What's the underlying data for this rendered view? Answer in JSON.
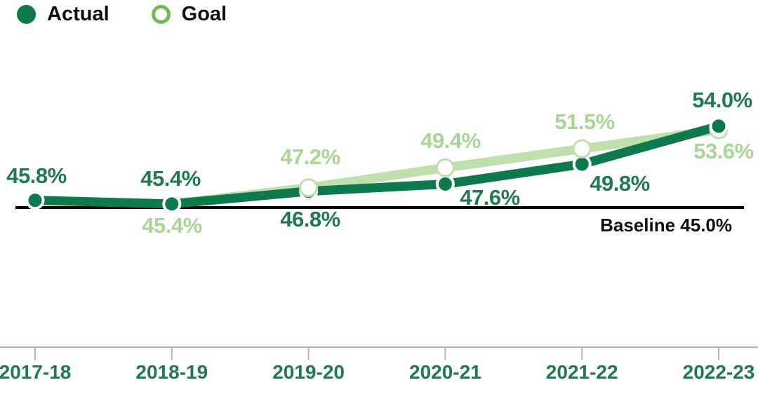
{
  "legend": {
    "actual_label": "Actual",
    "goal_label": "Goal"
  },
  "colors": {
    "actual_line": "#0d7a4e",
    "actual_text": "#1f7b4e",
    "goal_line": "#bfe0ab",
    "goal_text": "#a8d795",
    "goal_legend_ring": "#6cbf4b",
    "year_text": "#1f7b4e",
    "baseline_line": "#000000",
    "axis_line": "#b5b5b5",
    "legend_text": "#101010"
  },
  "chart_data": {
    "type": "line",
    "title": "",
    "categories": [
      "2017-18",
      "2018-19",
      "2019-20",
      "2020-21",
      "2021-22",
      "2022-23"
    ],
    "series": [
      {
        "name": "Actual",
        "values": [
          45.8,
          45.4,
          46.8,
          47.6,
          49.8,
          54.0
        ],
        "labels": [
          "45.8%",
          "45.4%",
          "46.8%",
          "47.6%",
          "49.8%",
          "54.0%"
        ]
      },
      {
        "name": "Goal",
        "values": [
          null,
          45.4,
          47.2,
          49.4,
          51.5,
          53.6
        ],
        "labels": [
          null,
          "45.4%",
          "47.2%",
          "49.4%",
          "51.5%",
          "53.6%"
        ]
      }
    ],
    "baseline": {
      "value": 45.0,
      "label": "Baseline 45.0%"
    },
    "ylim": [
      44,
      56
    ],
    "grid": false,
    "legend_position": "top-left"
  }
}
